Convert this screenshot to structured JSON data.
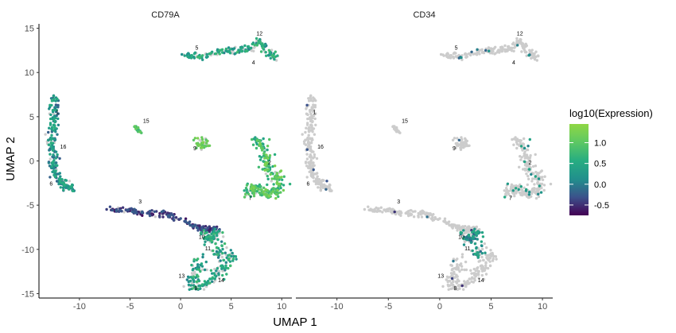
{
  "chart_data": {
    "type": "scatter",
    "xlabel": "UMAP 1",
    "ylabel": "UMAP 2",
    "xlim": [
      -14,
      11
    ],
    "ylim": [
      -15.5,
      15.5
    ],
    "x_ticks": [
      -10,
      -5,
      0,
      5,
      10
    ],
    "y_ticks": [
      -15,
      -10,
      -5,
      0,
      5,
      10,
      15
    ],
    "x_tick_labels": [
      "-10",
      "-5",
      "0",
      "5",
      "10"
    ],
    "y_tick_labels": [
      "-15",
      "-10",
      "-5",
      "0",
      "5",
      "10",
      "15"
    ],
    "grid": false,
    "legend": {
      "title": "log10(Expression)",
      "placement": "right",
      "range": [
        -0.75,
        1.45
      ],
      "breaks": [
        -0.5,
        0.0,
        0.5,
        1.0
      ],
      "break_labels": [
        "-0.5",
        "0.0",
        "0.5",
        "1.0"
      ],
      "colormap": [
        "#440154",
        "#3b528b",
        "#21908c",
        "#27ad81",
        "#5dc863",
        "#8fd744"
      ],
      "background_color": "#cccccc"
    },
    "panels": [
      {
        "name": "CD79A"
      },
      {
        "name": "CD34"
      }
    ],
    "clusters": [
      {
        "label": "1",
        "x": -12.2,
        "y": 5.3
      },
      {
        "label": "2",
        "x": 8.8,
        "y": -0.4
      },
      {
        "label": "3",
        "x": -4.0,
        "y": -4.8
      },
      {
        "label": "4",
        "x": 7.2,
        "y": 10.9
      },
      {
        "label": "5",
        "x": 1.6,
        "y": 12.6
      },
      {
        "label": "6",
        "x": -12.8,
        "y": -2.8
      },
      {
        "label": "7",
        "x": 6.9,
        "y": -4.4
      },
      {
        "label": "8",
        "x": 1.5,
        "y": -14.6
      },
      {
        "label": "9",
        "x": 1.4,
        "y": 1.2
      },
      {
        "label": "10",
        "x": 2.1,
        "y": -8.8
      },
      {
        "label": "11",
        "x": 2.7,
        "y": -10.1
      },
      {
        "label": "12",
        "x": 7.8,
        "y": 14.2
      },
      {
        "label": "13",
        "x": 0.1,
        "y": -13.2
      },
      {
        "label": "14",
        "x": 4.0,
        "y": -13.7
      },
      {
        "label": "15",
        "x": -3.4,
        "y": 4.3
      },
      {
        "label": "16",
        "x": -11.6,
        "y": 1.4
      }
    ]
  }
}
